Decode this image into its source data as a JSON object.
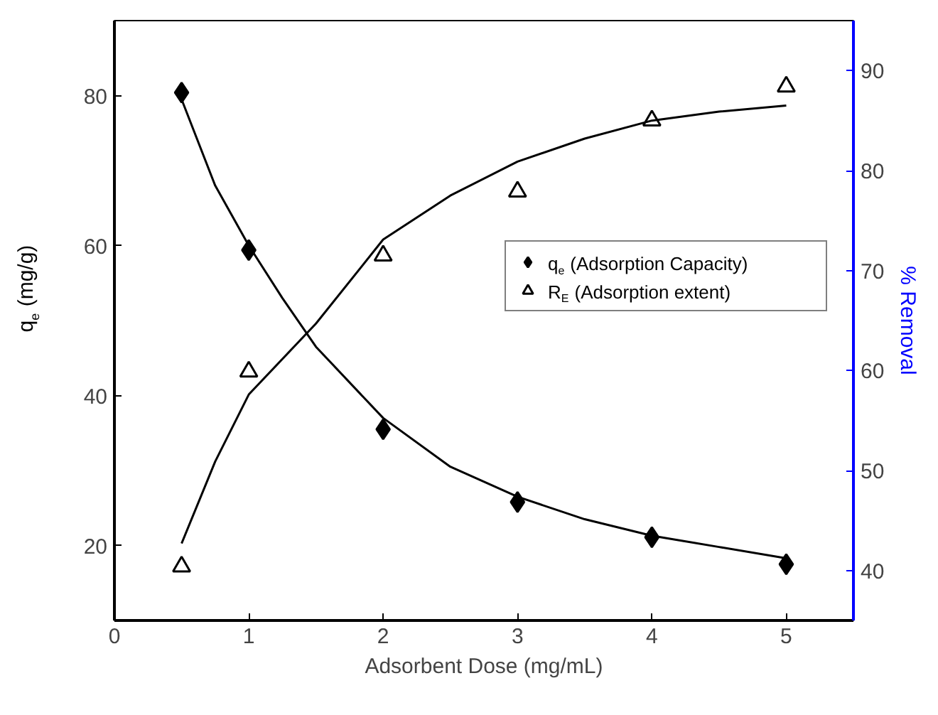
{
  "chart_data": {
    "type": "scatter",
    "xlabel": "Adsorbent Dose (mg/mL)",
    "ylabel": "q$_{e}$ (mg/g)",
    "y2label": "% Removal",
    "xlim": [
      0,
      5.5
    ],
    "xticks": [
      0,
      1,
      2,
      3,
      4,
      5
    ],
    "ylim": [
      10,
      90
    ],
    "yticks": [
      20,
      40,
      60,
      80
    ],
    "y2lim": [
      35,
      95
    ],
    "y2ticks": [
      40,
      50,
      60,
      70,
      80,
      90
    ],
    "grid": false,
    "legend": "right",
    "series": [
      {
        "name": "q$_{e}$ (Adsorption Capacity)",
        "marker": "diamond",
        "color": "#000000",
        "x": [
          0.5,
          1,
          2,
          3,
          4,
          5
        ],
        "values": [
          80.4,
          59.4,
          35.5,
          25.8,
          21.1,
          17.5
        ]
      },
      {
        "name": "R$_{E}$ (Adsorption extent)",
        "marker": "triangle",
        "color": "#000000",
        "axis": "y2",
        "x": [
          0.5,
          1,
          2,
          3,
          4,
          5
        ],
        "values": [
          40.4,
          59.9,
          71.5,
          77.9,
          85.0,
          88.4
        ]
      },
      {
        "type": "line",
        "color": "#000000",
        "x": [
          0.5,
          0.75,
          1,
          1.25,
          1.5,
          2,
          2.5,
          3,
          3.5,
          4,
          4.5,
          5
        ],
        "values": [
          79.5,
          68,
          60,
          53,
          46.5,
          37,
          30.5,
          26.5,
          23.5,
          21.3,
          19.8,
          18.3
        ]
      },
      {
        "type": "line",
        "color": "#000000",
        "axis": "y2",
        "x": [
          0.5,
          0.75,
          1,
          1.5,
          2,
          2.5,
          3,
          3.5,
          4,
          4.5,
          5
        ],
        "values": [
          42.7,
          50.9,
          57.6,
          64.7,
          73.1,
          77.5,
          80.9,
          83.2,
          85.0,
          85.9,
          86.5
        ]
      }
    ]
  }
}
